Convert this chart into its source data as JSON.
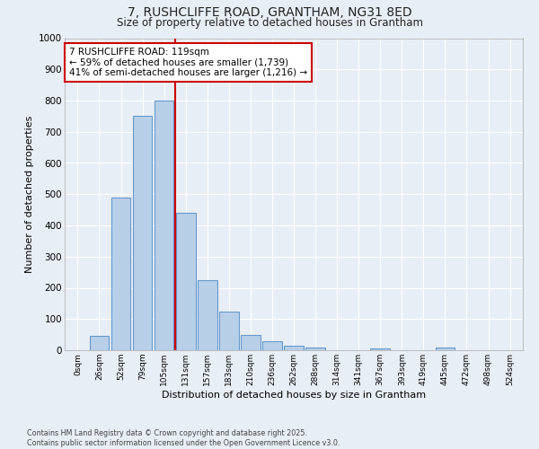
{
  "title": "7, RUSHCLIFFE ROAD, GRANTHAM, NG31 8ED",
  "subtitle": "Size of property relative to detached houses in Grantham",
  "xlabel": "Distribution of detached houses by size in Grantham",
  "ylabel": "Number of detached properties",
  "bin_labels": [
    "0sqm",
    "26sqm",
    "52sqm",
    "79sqm",
    "105sqm",
    "131sqm",
    "157sqm",
    "183sqm",
    "210sqm",
    "236sqm",
    "262sqm",
    "288sqm",
    "314sqm",
    "341sqm",
    "367sqm",
    "393sqm",
    "419sqm",
    "445sqm",
    "472sqm",
    "498sqm",
    "524sqm"
  ],
  "bin_values": [
    0,
    45,
    490,
    750,
    800,
    440,
    225,
    125,
    50,
    28,
    15,
    10,
    0,
    0,
    5,
    0,
    0,
    10,
    0,
    0,
    0
  ],
  "bar_color": "#b8cfe8",
  "bar_edge_color": "#6699cc",
  "vline_x_index": 4.5,
  "vline_color": "#cc0000",
  "annotation_line1": "7 RUSHCLIFFE ROAD: 119sqm",
  "annotation_line2": "← 59% of detached houses are smaller (1,739)",
  "annotation_line3": "41% of semi-detached houses are larger (1,216) →",
  "annotation_box_color": "#ffffff",
  "annotation_box_edge": "#cc0000",
  "background_color": "#e8eef5",
  "grid_color": "#ffffff",
  "ylim": [
    0,
    1000
  ],
  "yticks": [
    0,
    100,
    200,
    300,
    400,
    500,
    600,
    700,
    800,
    900,
    1000
  ],
  "footnote": "Contains HM Land Registry data © Crown copyright and database right 2025.\nContains public sector information licensed under the Open Government Licence v3.0."
}
